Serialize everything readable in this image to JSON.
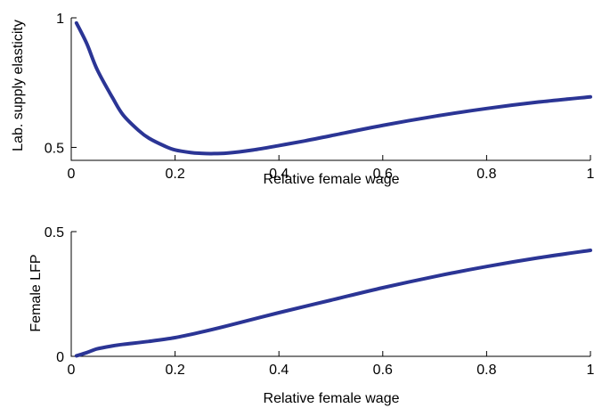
{
  "chart_data": [
    {
      "type": "line",
      "title": "",
      "xlabel": "Relative female wage",
      "ylabel": "Lab. supply elasticity",
      "xlim": [
        0,
        1
      ],
      "ylim": [
        0.45,
        1
      ],
      "xticks": [
        0,
        0.2,
        0.4,
        0.6,
        0.8,
        1
      ],
      "xtick_labels": [
        "0",
        "0.2",
        "0.4",
        "0.6",
        "0.8",
        "1"
      ],
      "yticks": [
        0.5,
        1
      ],
      "ytick_labels": [
        "0.5",
        "1"
      ],
      "grid": false,
      "series": [
        {
          "color": "#2b3595",
          "x": [
            0.01,
            0.03,
            0.05,
            0.08,
            0.1,
            0.13,
            0.15,
            0.18,
            0.2,
            0.23,
            0.25,
            0.27,
            0.3,
            0.35,
            0.4,
            0.45,
            0.5,
            0.6,
            0.7,
            0.8,
            0.9,
            1.0
          ],
          "y": [
            0.98,
            0.9,
            0.8,
            0.69,
            0.625,
            0.565,
            0.535,
            0.505,
            0.49,
            0.48,
            0.477,
            0.476,
            0.478,
            0.49,
            0.507,
            0.525,
            0.545,
            0.585,
            0.62,
            0.65,
            0.675,
            0.695
          ]
        }
      ]
    },
    {
      "type": "line",
      "title": "",
      "xlabel": "Relative female wage",
      "ylabel": "Female LFP",
      "xlim": [
        0,
        1
      ],
      "ylim": [
        0,
        0.5
      ],
      "xticks": [
        0,
        0.2,
        0.4,
        0.6,
        0.8,
        1
      ],
      "xtick_labels": [
        "0",
        "0.2",
        "0.4",
        "0.6",
        "0.8",
        "1"
      ],
      "yticks": [
        0,
        0.5
      ],
      "ytick_labels": [
        "0",
        "0.5"
      ],
      "grid": false,
      "series": [
        {
          "color": "#2b3595",
          "x": [
            0.01,
            0.03,
            0.05,
            0.08,
            0.1,
            0.15,
            0.2,
            0.25,
            0.3,
            0.4,
            0.5,
            0.6,
            0.7,
            0.8,
            0.9,
            1.0
          ],
          "y": [
            0.002,
            0.015,
            0.03,
            0.042,
            0.048,
            0.06,
            0.075,
            0.097,
            0.122,
            0.175,
            0.225,
            0.275,
            0.32,
            0.36,
            0.395,
            0.425
          ]
        }
      ]
    }
  ]
}
